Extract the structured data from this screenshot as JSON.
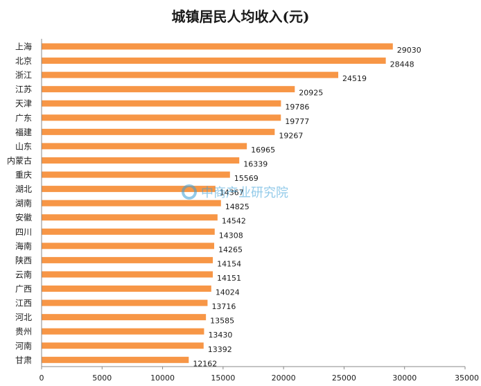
{
  "chart_data": {
    "type": "bar",
    "orientation": "horizontal",
    "title": "城镇居民人均收入(元)",
    "xlabel": "",
    "ylabel": "",
    "xlim": [
      0,
      35000
    ],
    "x_ticks": [
      "0",
      "5000",
      "10000",
      "15000",
      "20000",
      "25000",
      "30000",
      "35000"
    ],
    "grid": false,
    "legend": "none",
    "bar_color": "#F79646",
    "categories": [
      "上海",
      "北京",
      "浙江",
      "江苏",
      "天津",
      "广东",
      "福建",
      "山东",
      "内蒙古",
      "重庆",
      "湖北",
      "湖南",
      "安徽",
      "四川",
      "海南",
      "陕西",
      "云南",
      "广西",
      "江西",
      "河北",
      "贵州",
      "河南",
      "甘肃"
    ],
    "values": [
      29030,
      28448,
      24519,
      20925,
      19786,
      19777,
      19267,
      16965,
      16339,
      15569,
      14367,
      14825,
      14542,
      14308,
      14265,
      14154,
      14151,
      14024,
      13716,
      13585,
      13430,
      13392,
      12162
    ],
    "data_labels": [
      "29030",
      "28448",
      "24519",
      "20925",
      "19786",
      "19777",
      "19267",
      "16965",
      "16339",
      "15569",
      "14367",
      "14825",
      "14542",
      "14308",
      "14265",
      "14154",
      "14151",
      "14024",
      "13716",
      "13585",
      "13430",
      "13392",
      "12162"
    ]
  },
  "watermark": {
    "text": "中商产业研究院",
    "icon": "logo-icon"
  }
}
